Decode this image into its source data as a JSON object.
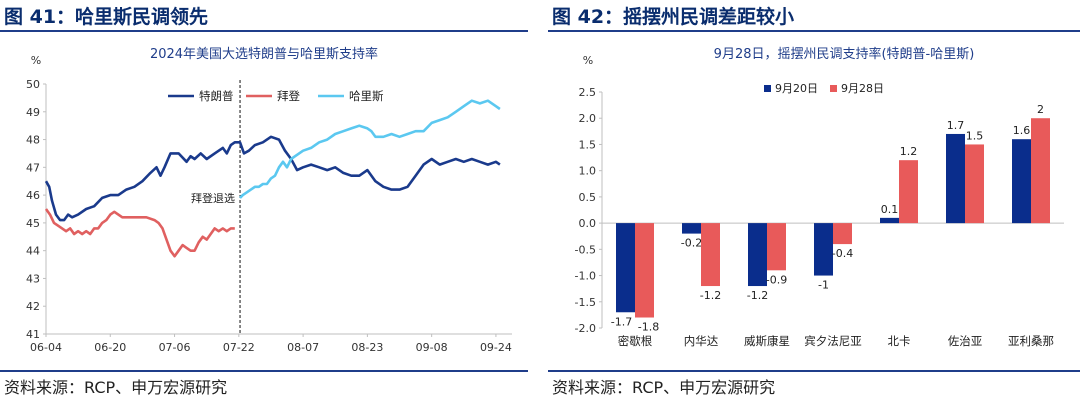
{
  "left": {
    "figure_title": "图 41：哈里斯民调领先",
    "source": "资料来源：RCP、申万宏源研究",
    "chart_data": {
      "type": "line",
      "title": "2024年美国大选特朗普与哈里斯支持率",
      "ylabel": "%",
      "ylim": [
        41,
        50
      ],
      "yticks": [
        41,
        42,
        43,
        44,
        45,
        46,
        47,
        48,
        49,
        50
      ],
      "x_ticks": [
        "06-04",
        "06-20",
        "07-06",
        "07-22",
        "08-07",
        "08-23",
        "09-08",
        "09-24"
      ],
      "legend_position": "top-right",
      "annotation": "拜登退选",
      "series": [
        {
          "name": "特朗普",
          "color": "#1a3a8c",
          "points": [
            [
              0,
              46.5
            ],
            [
              0.8,
              46.3
            ],
            [
              1.5,
              45.8
            ],
            [
              2.5,
              45.3
            ],
            [
              3.5,
              45.1
            ],
            [
              4.5,
              45.1
            ],
            [
              5.5,
              45.3
            ],
            [
              6.5,
              45.2
            ],
            [
              8,
              45.3
            ],
            [
              10,
              45.5
            ],
            [
              12,
              45.6
            ],
            [
              14,
              45.9
            ],
            [
              16,
              46.0
            ],
            [
              18,
              46.0
            ],
            [
              20,
              46.2
            ],
            [
              22,
              46.3
            ],
            [
              24,
              46.5
            ],
            [
              26,
              46.8
            ],
            [
              27.5,
              47.0
            ],
            [
              28.5,
              46.7
            ],
            [
              29.5,
              47.0
            ],
            [
              31,
              47.5
            ],
            [
              33,
              47.5
            ],
            [
              35,
              47.2
            ],
            [
              36,
              47.4
            ],
            [
              37,
              47.3
            ],
            [
              38.5,
              47.5
            ],
            [
              40,
              47.3
            ],
            [
              42,
              47.5
            ],
            [
              44,
              47.7
            ],
            [
              45,
              47.5
            ],
            [
              46,
              47.8
            ],
            [
              47,
              47.9
            ],
            [
              48.3,
              47.9
            ],
            [
              49.3,
              47.5
            ],
            [
              50.5,
              47.6
            ],
            [
              52,
              47.8
            ],
            [
              54,
              47.9
            ],
            [
              56,
              48.1
            ],
            [
              58,
              48.0
            ],
            [
              59.5,
              47.6
            ],
            [
              61,
              47.3
            ],
            [
              62.5,
              46.9
            ],
            [
              64,
              47.0
            ],
            [
              66,
              47.1
            ],
            [
              68,
              47.0
            ],
            [
              70,
              46.9
            ],
            [
              72,
              47.0
            ],
            [
              74,
              46.8
            ],
            [
              76,
              46.7
            ],
            [
              78,
              46.7
            ],
            [
              80,
              46.9
            ],
            [
              82,
              46.5
            ],
            [
              84,
              46.3
            ],
            [
              86,
              46.2
            ],
            [
              88,
              46.2
            ],
            [
              90,
              46.3
            ],
            [
              92,
              46.7
            ],
            [
              94,
              47.1
            ],
            [
              96,
              47.3
            ],
            [
              98,
              47.1
            ],
            [
              100,
              47.2
            ],
            [
              102,
              47.3
            ],
            [
              104,
              47.2
            ],
            [
              106,
              47.3
            ],
            [
              108,
              47.2
            ],
            [
              110,
              47.1
            ],
            [
              112,
              47.2
            ],
            [
              113,
              47.1
            ]
          ]
        },
        {
          "name": "拜登",
          "color": "#e06060",
          "points": [
            [
              0,
              45.5
            ],
            [
              1,
              45.3
            ],
            [
              2,
              45.0
            ],
            [
              3,
              44.9
            ],
            [
              4,
              44.8
            ],
            [
              5,
              44.7
            ],
            [
              6,
              44.8
            ],
            [
              7,
              44.6
            ],
            [
              8,
              44.7
            ],
            [
              9,
              44.6
            ],
            [
              10,
              44.7
            ],
            [
              11,
              44.6
            ],
            [
              12,
              44.8
            ],
            [
              13,
              44.8
            ],
            [
              14,
              45.0
            ],
            [
              15,
              45.1
            ],
            [
              16,
              45.3
            ],
            [
              17,
              45.4
            ],
            [
              18,
              45.3
            ],
            [
              19,
              45.2
            ],
            [
              21,
              45.2
            ],
            [
              23,
              45.2
            ],
            [
              25,
              45.2
            ],
            [
              27,
              45.1
            ],
            [
              28,
              45.0
            ],
            [
              29,
              44.8
            ],
            [
              30,
              44.4
            ],
            [
              31,
              44.0
            ],
            [
              32,
              43.8
            ],
            [
              33,
              44.0
            ],
            [
              34,
              44.2
            ],
            [
              35,
              44.1
            ],
            [
              36,
              44.0
            ],
            [
              37,
              44.0
            ],
            [
              38,
              44.3
            ],
            [
              39,
              44.5
            ],
            [
              40,
              44.4
            ],
            [
              41,
              44.6
            ],
            [
              42,
              44.8
            ],
            [
              43,
              44.7
            ],
            [
              44,
              44.8
            ],
            [
              45,
              44.7
            ],
            [
              46,
              44.8
            ],
            [
              47,
              44.8
            ]
          ]
        },
        {
          "name": "哈里斯",
          "color": "#5bc8f0",
          "points": [
            [
              48.3,
              45.9
            ],
            [
              49,
              46.0
            ],
            [
              50,
              46.1
            ],
            [
              51,
              46.2
            ],
            [
              52,
              46.3
            ],
            [
              53,
              46.3
            ],
            [
              54,
              46.4
            ],
            [
              55,
              46.4
            ],
            [
              56,
              46.6
            ],
            [
              57,
              46.7
            ],
            [
              58,
              47.0
            ],
            [
              59,
              47.2
            ],
            [
              60,
              47.0
            ],
            [
              61,
              47.3
            ],
            [
              62,
              47.4
            ],
            [
              63,
              47.5
            ],
            [
              64,
              47.6
            ],
            [
              66,
              47.7
            ],
            [
              68,
              47.9
            ],
            [
              70,
              48.0
            ],
            [
              72,
              48.2
            ],
            [
              74,
              48.3
            ],
            [
              76,
              48.4
            ],
            [
              78,
              48.5
            ],
            [
              80,
              48.4
            ],
            [
              81,
              48.3
            ],
            [
              82,
              48.1
            ],
            [
              84,
              48.1
            ],
            [
              86,
              48.2
            ],
            [
              88,
              48.1
            ],
            [
              90,
              48.2
            ],
            [
              92,
              48.3
            ],
            [
              94,
              48.3
            ],
            [
              96,
              48.6
            ],
            [
              98,
              48.7
            ],
            [
              100,
              48.8
            ],
            [
              102,
              49.0
            ],
            [
              104,
              49.2
            ],
            [
              106,
              49.4
            ],
            [
              108,
              49.3
            ],
            [
              110,
              49.4
            ],
            [
              112,
              49.2
            ],
            [
              113,
              49.1
            ]
          ]
        }
      ]
    }
  },
  "right": {
    "figure_title": "图 42：摇摆州民调差距较小",
    "source": "资料来源：RCP、申万宏源研究",
    "chart_data": {
      "type": "bar",
      "title": "9月28日，摇摆州民调支持率(特朗普-哈里斯)",
      "ylabel": "%",
      "ylim": [
        -2.0,
        2.5
      ],
      "yticks": [
        "2.5",
        "2.0",
        "1.5",
        "1.0",
        "0.5",
        "0.0",
        "-0.5",
        "-1.0",
        "-1.5",
        "-2.0"
      ],
      "legend_position": "top",
      "categories": [
        "密歇根",
        "内华达",
        "威斯康星",
        "宾夕法尼亚",
        "北卡",
        "佐治亚",
        "亚利桑那"
      ],
      "series": [
        {
          "name": "9月20日",
          "color": "#0a2d8c",
          "values": [
            -1.7,
            -0.2,
            -1.2,
            -1,
            0.1,
            1.7,
            1.6
          ],
          "labels": [
            "-1.7",
            "-0.2",
            "-1.2",
            "-1",
            "0.1",
            "1.7",
            "1.6"
          ]
        },
        {
          "name": "9月28日",
          "color": "#e85a5a",
          "values": [
            -1.8,
            -1.2,
            -0.9,
            -0.4,
            1.2,
            1.5,
            2
          ],
          "labels": [
            "-1.8",
            "-1.2",
            "-0.9",
            "-0.4",
            "1.2",
            "1.5",
            "2"
          ]
        }
      ]
    }
  }
}
